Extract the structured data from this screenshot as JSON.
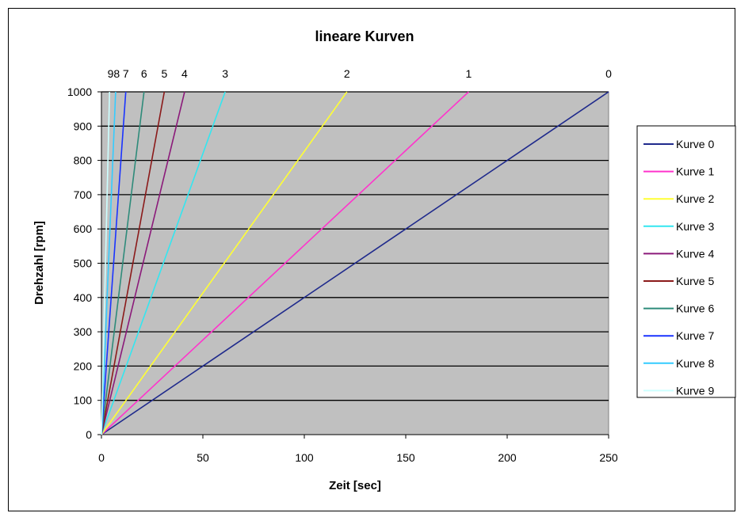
{
  "chart_data": {
    "type": "line",
    "title": "lineare Kurven",
    "xlabel": "Zeit [sec]",
    "ylabel": "Drehzahl [rpm]",
    "xlim": [
      0,
      250
    ],
    "ylim": [
      0,
      1000
    ],
    "x_ticks": [
      "0",
      "50",
      "100",
      "150",
      "200",
      "250"
    ],
    "y_ticks": [
      "0",
      "100",
      "200",
      "300",
      "400",
      "500",
      "600",
      "700",
      "800",
      "900",
      "1000"
    ],
    "grid": "horizontal",
    "plot_background": "#c0c0c0",
    "legend_position": "right",
    "curve_labels": [
      {
        "text": "0",
        "x_end": 250
      },
      {
        "text": "1",
        "x_end": 181
      },
      {
        "text": "2",
        "x_end": 121
      },
      {
        "text": "3",
        "x_end": 61
      },
      {
        "text": "4",
        "x_end": 41
      },
      {
        "text": "5",
        "x_end": 31
      },
      {
        "text": "6",
        "x_end": 21
      },
      {
        "text": "7",
        "x_end": 12
      },
      {
        "text": "98",
        "x_end": 6
      }
    ],
    "series": [
      {
        "name": "Kurve 0",
        "color": "#1f2a8c",
        "x": [
          0,
          250
        ],
        "y": [
          0,
          1000
        ]
      },
      {
        "name": "Kurve 1",
        "color": "#ff33cc",
        "x": [
          0,
          181
        ],
        "y": [
          0,
          1000
        ]
      },
      {
        "name": "Kurve 2",
        "color": "#ffff33",
        "x": [
          0,
          121
        ],
        "y": [
          0,
          1000
        ]
      },
      {
        "name": "Kurve 3",
        "color": "#33e6f0",
        "x": [
          0,
          61
        ],
        "y": [
          0,
          1000
        ]
      },
      {
        "name": "Kurve 4",
        "color": "#8b1a7a",
        "x": [
          0,
          41
        ],
        "y": [
          0,
          1000
        ]
      },
      {
        "name": "Kurve 5",
        "color": "#8b1a1a",
        "x": [
          0,
          31
        ],
        "y": [
          0,
          1000
        ]
      },
      {
        "name": "Kurve 6",
        "color": "#2e8b7a",
        "x": [
          0,
          21
        ],
        "y": [
          0,
          1000
        ]
      },
      {
        "name": "Kurve 7",
        "color": "#1a33ff",
        "x": [
          0,
          12
        ],
        "y": [
          0,
          1000
        ]
      },
      {
        "name": "Kurve 8",
        "color": "#33ccff",
        "x": [
          0,
          7
        ],
        "y": [
          0,
          1000
        ]
      },
      {
        "name": "Kurve 9",
        "color": "#ccffff",
        "x": [
          0,
          4
        ],
        "y": [
          0,
          1000
        ]
      }
    ]
  }
}
